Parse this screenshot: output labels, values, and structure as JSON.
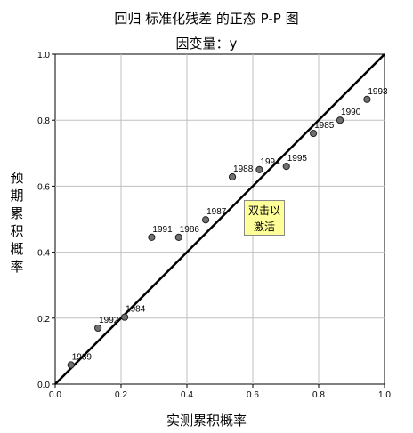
{
  "chart_data": {
    "type": "scatter",
    "title": "回归 标准化残差 的正态 P-P 图",
    "subtitle": "因变量：y",
    "xlabel": "实测累积概率",
    "ylabel": "预期累积概率",
    "xlim": [
      0,
      1
    ],
    "ylim": [
      0,
      1
    ],
    "xticks": [
      "0.0",
      "0.2",
      "0.4",
      "0.6",
      "0.8",
      "1.0"
    ],
    "yticks": [
      "0.0",
      "0.2",
      "0.4",
      "0.6",
      "0.8",
      "1.0"
    ],
    "grid": true,
    "reference_line": [
      [
        0,
        0
      ],
      [
        1,
        1
      ]
    ],
    "points": [
      {
        "label": "1989",
        "x": 0.048,
        "y": 0.058
      },
      {
        "label": "1992",
        "x": 0.13,
        "y": 0.17
      },
      {
        "label": "1984",
        "x": 0.211,
        "y": 0.203
      },
      {
        "label": "1991",
        "x": 0.293,
        "y": 0.445
      },
      {
        "label": "1986",
        "x": 0.375,
        "y": 0.445
      },
      {
        "label": "1987",
        "x": 0.457,
        "y": 0.498
      },
      {
        "label": "1988",
        "x": 0.538,
        "y": 0.628
      },
      {
        "label": "1994",
        "x": 0.62,
        "y": 0.65
      },
      {
        "label": "1995",
        "x": 0.702,
        "y": 0.66
      },
      {
        "label": "1985",
        "x": 0.784,
        "y": 0.76
      },
      {
        "label": "1990",
        "x": 0.865,
        "y": 0.8
      },
      {
        "label": "1993",
        "x": 0.947,
        "y": 0.863
      }
    ]
  },
  "tooltip": {
    "text": "双击以激活"
  }
}
